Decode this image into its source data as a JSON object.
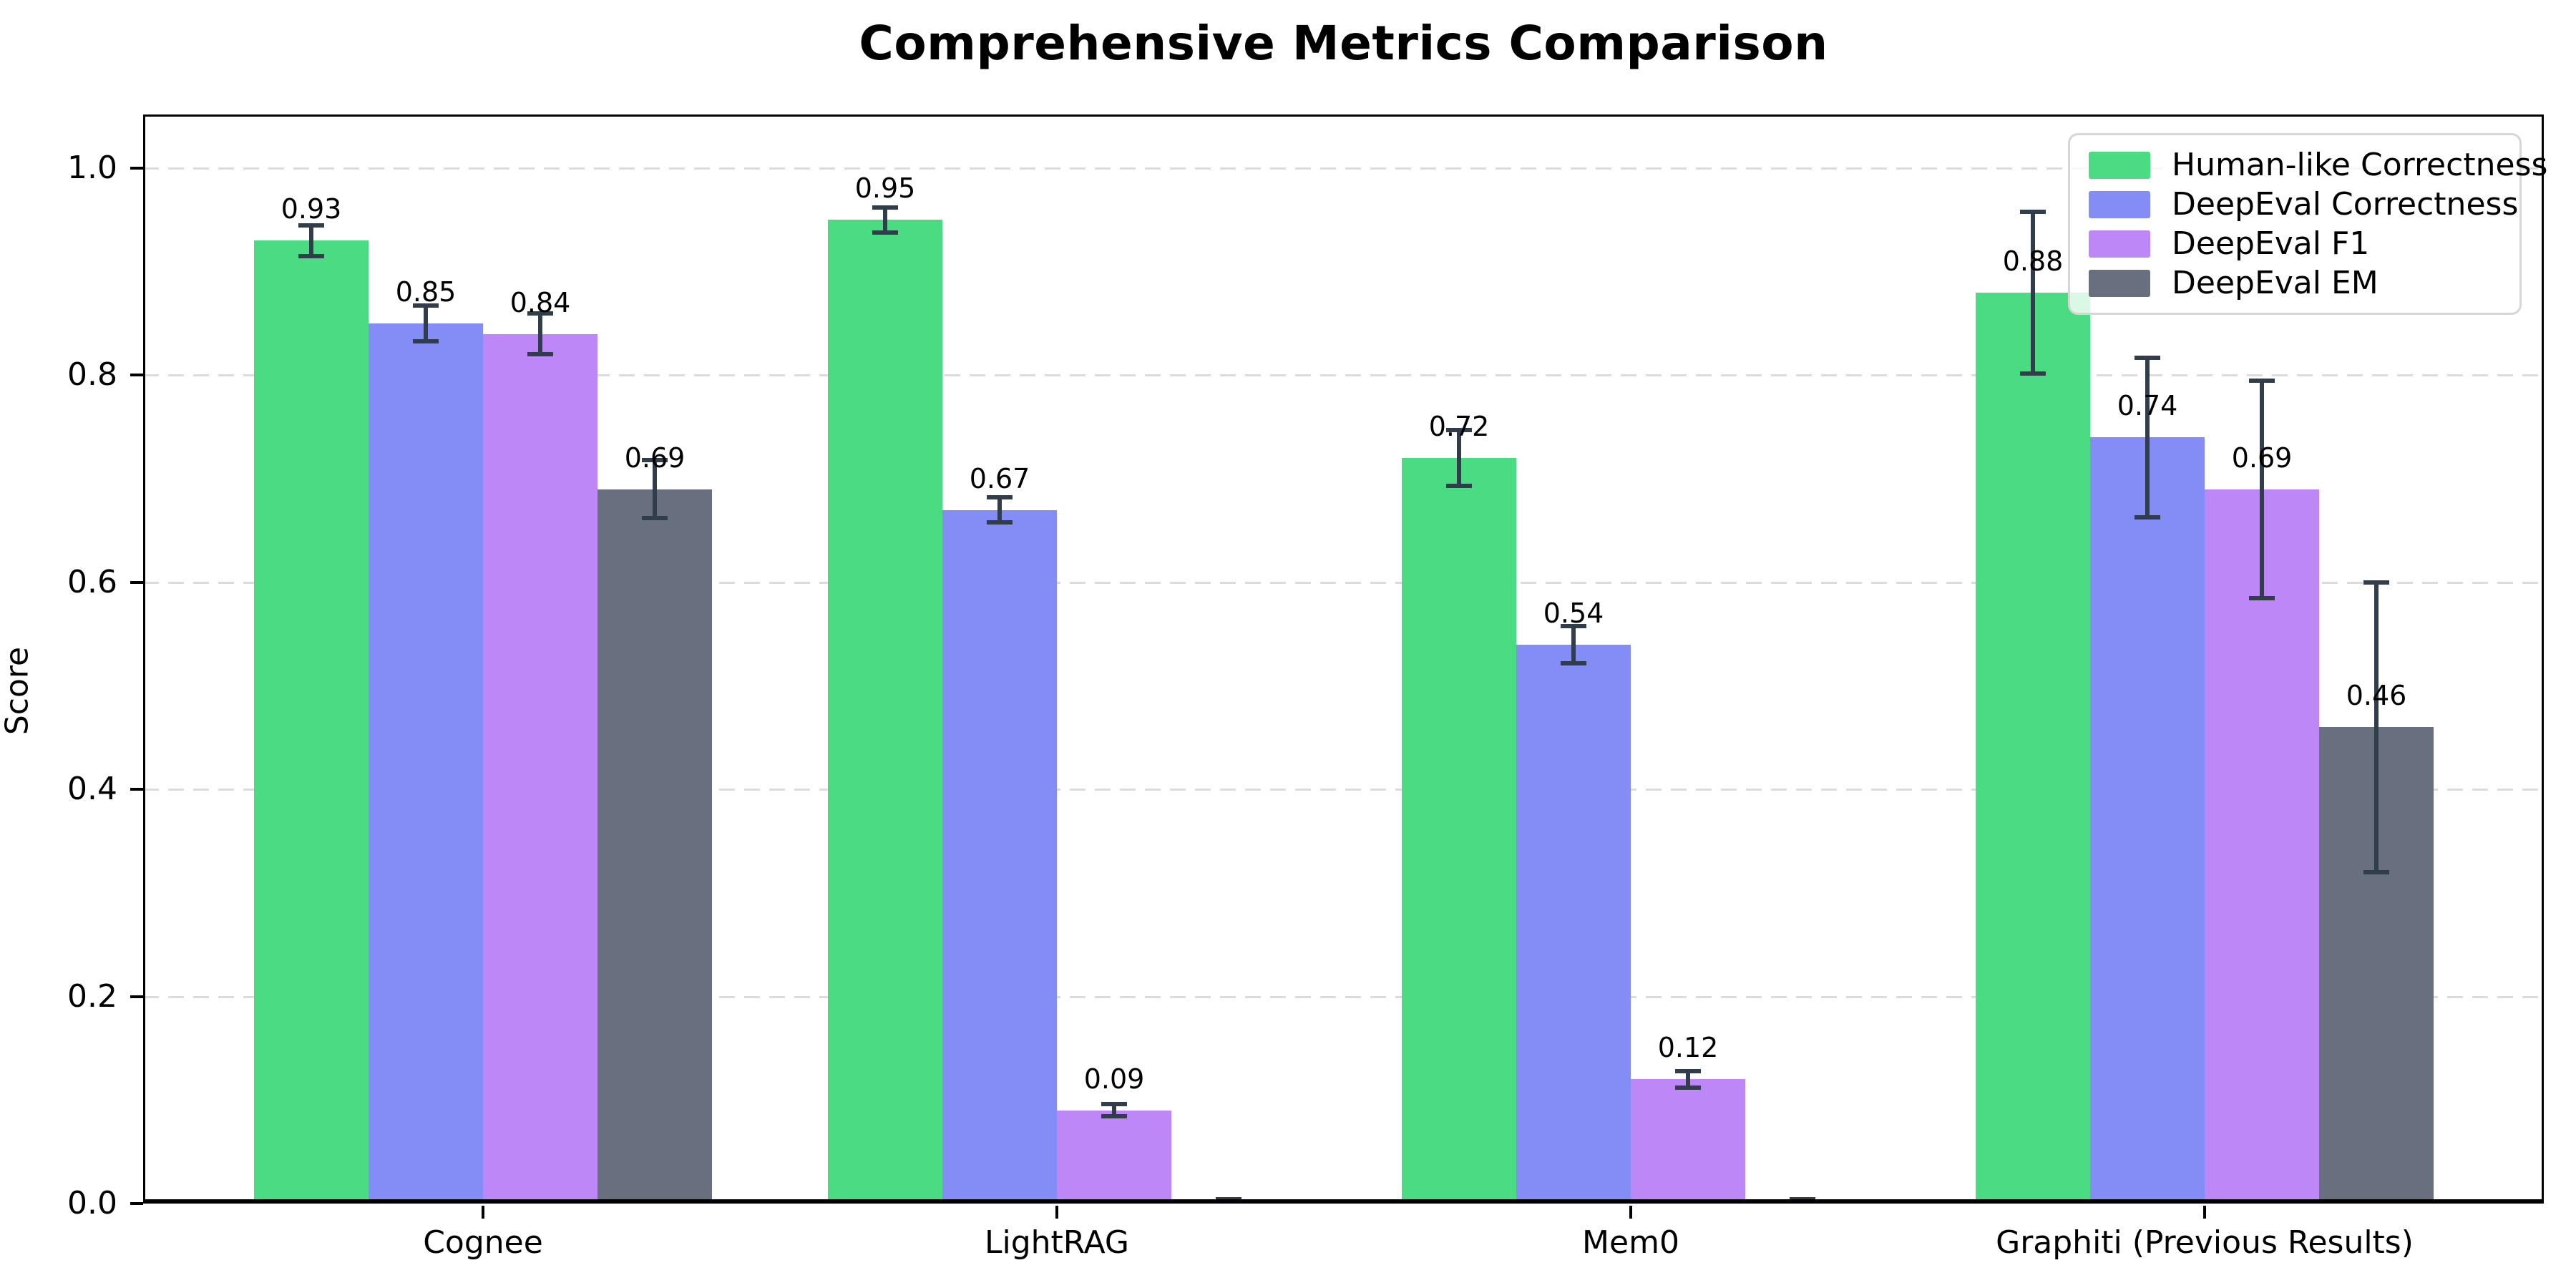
{
  "chart_data": {
    "type": "bar",
    "title": "Comprehensive Metrics Comparison",
    "ylabel": "Score",
    "xlabel": "",
    "categories": [
      "Cognee",
      "LightRAG",
      "Mem0",
      "Graphiti (Previous Results)"
    ],
    "series": [
      {
        "name": "Human-like Correctness",
        "color": "#4bdb83",
        "values": [
          0.93,
          0.95,
          0.72,
          0.88
        ],
        "errors": [
          0.015,
          0.012,
          0.027,
          0.078
        ],
        "labels": [
          "0.93",
          "0.95",
          "0.72",
          "0.88"
        ]
      },
      {
        "name": "DeepEval Correctness",
        "color": "#848cf5",
        "values": [
          0.85,
          0.67,
          0.54,
          0.74
        ],
        "errors": [
          0.017,
          0.012,
          0.018,
          0.077
        ],
        "labels": [
          "0.85",
          "0.67",
          "0.54",
          "0.74"
        ]
      },
      {
        "name": "DeepEval F1",
        "color": "#bd87f7",
        "values": [
          0.84,
          0.09,
          0.12,
          0.69
        ],
        "errors": [
          0.02,
          0.006,
          0.008,
          0.105
        ],
        "labels": [
          "0.84",
          "0.09",
          "0.12",
          "0.69"
        ]
      },
      {
        "name": "DeepEval EM",
        "color": "#68707f",
        "values": [
          0.69,
          0.0,
          0.0,
          0.46
        ],
        "errors": [
          0.028,
          0.004,
          0.004,
          0.14
        ],
        "labels": [
          "0.69",
          "",
          "",
          "0.46"
        ]
      }
    ],
    "ylim": [
      0.0,
      1.05
    ],
    "yticks": [
      0.0,
      0.2,
      0.4,
      0.6,
      0.8,
      1.0
    ],
    "ytick_labels": [
      "0.0",
      "0.2",
      "0.4",
      "0.6",
      "0.8",
      "1.0"
    ],
    "grid": "horizontal dashed",
    "legend_position": "upper right",
    "colors": {
      "grid": "#dcdcdc",
      "error_bar": "#323d4c",
      "axis": "#000000",
      "legend_border": "#d6d6d6",
      "text": "#000000"
    }
  }
}
